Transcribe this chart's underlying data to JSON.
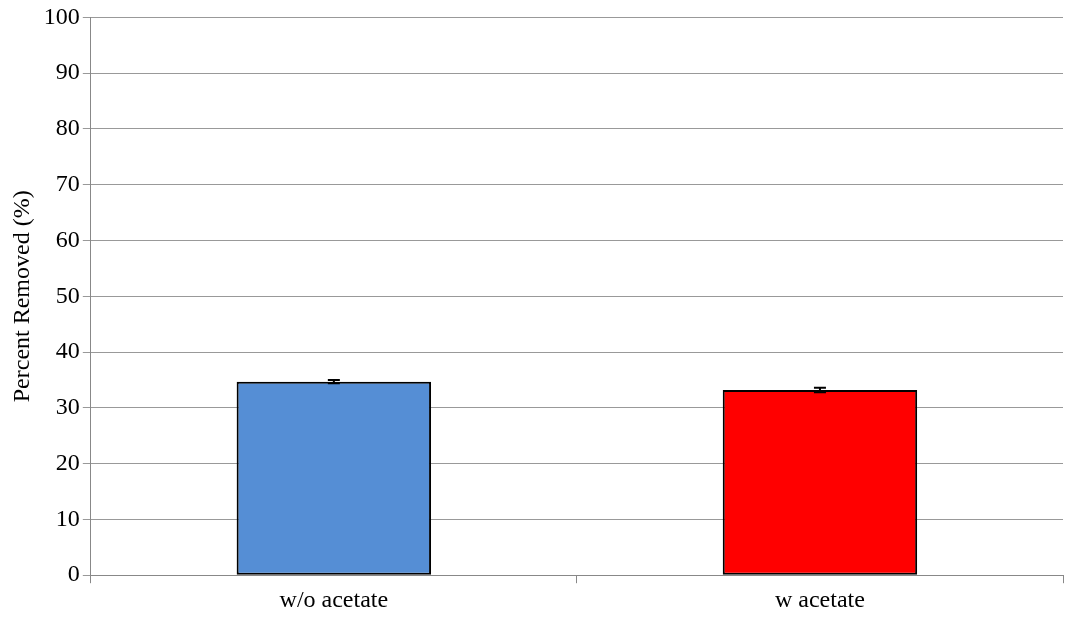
{
  "chart_data": {
    "type": "bar",
    "ylabel": "Percent Removed (%)",
    "categories": [
      "w/o acetate",
      "w acetate"
    ],
    "values": [
      34.7,
      33.2
    ],
    "colors": [
      "#558ed5",
      "#ff0000"
    ],
    "errors": [
      0.3,
      0.4
    ],
    "ylim": [
      0,
      100
    ],
    "yticks": [
      0,
      10,
      20,
      30,
      40,
      50,
      60,
      70,
      80,
      90,
      100
    ],
    "grid": "y"
  }
}
